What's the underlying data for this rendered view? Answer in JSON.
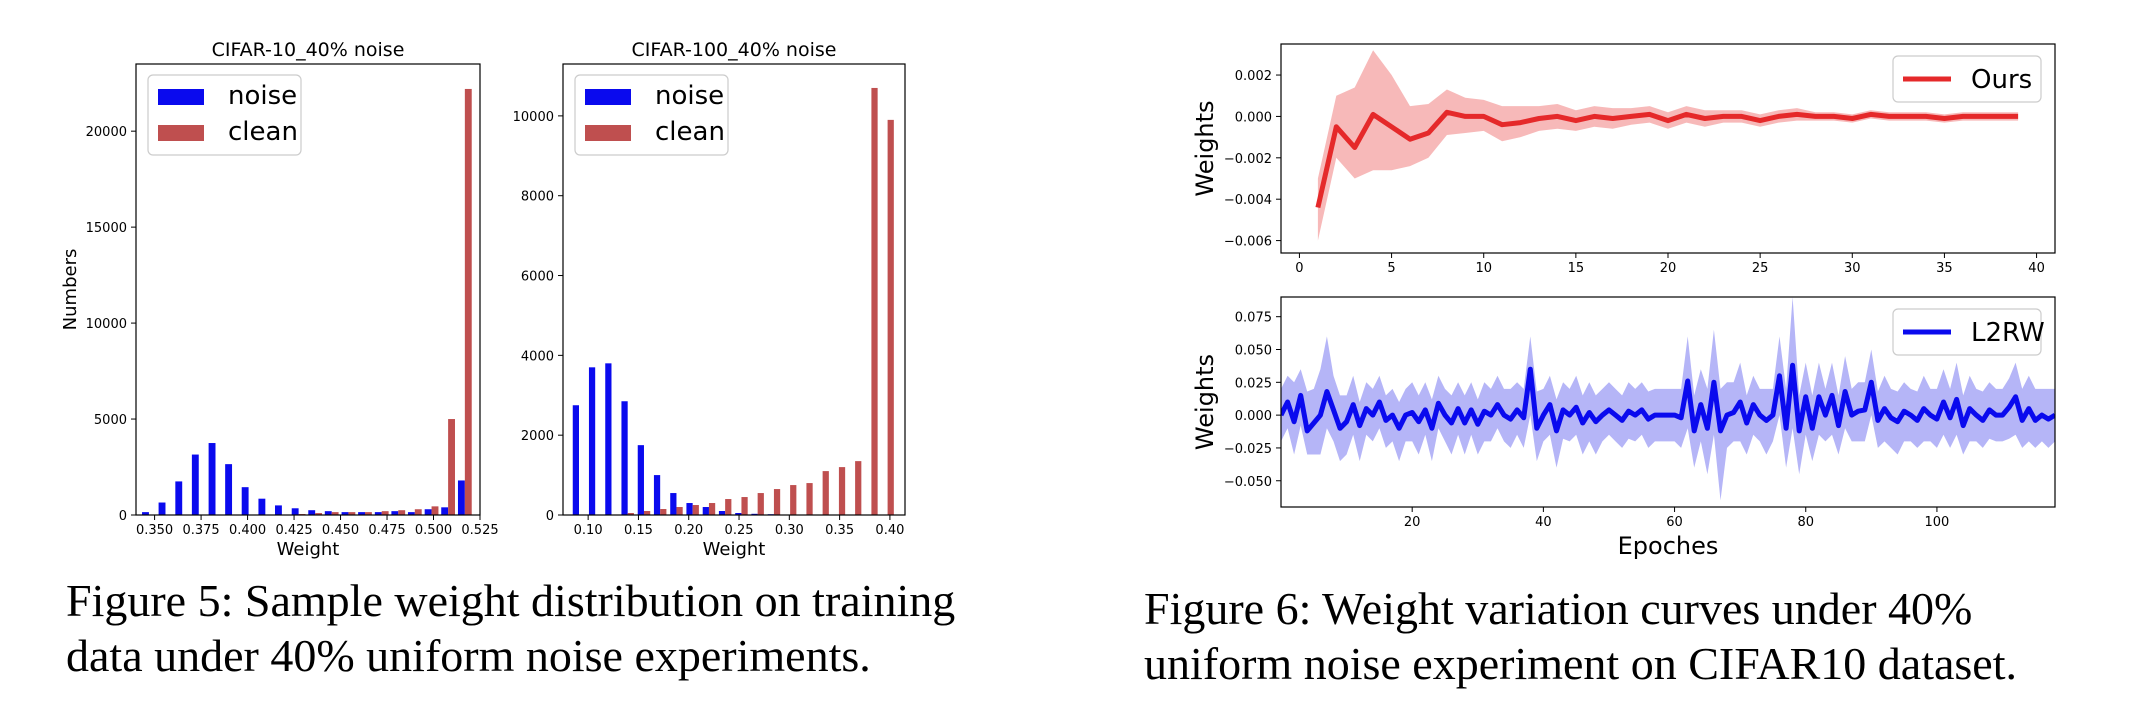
{
  "figure5": {
    "caption": "Figure 5: Sample weight distribution on training data under 40% uniform noise experiments.",
    "caption_lines": [
      "Figure 5: Sample weight distribution on training",
      "data under 40% uniform noise experiments."
    ]
  },
  "figure6": {
    "caption": "Figure 6: Weight variation curves under 40% uniform noise experiment on CIFAR10 dataset.",
    "caption_lines": [
      "Figure 6: Weight variation curves under 40%",
      "uniform noise experiment on CIFAR10 dataset."
    ]
  },
  "colors": {
    "noise": "#0a0aee",
    "clean": "#bf4f4f",
    "ours": "#e5292a",
    "ours_band": "#f7b9b9",
    "l2rw": "#0a0aee",
    "l2rw_band": "#b5b5f7"
  },
  "chart_data": [
    {
      "type": "bar",
      "title": "CIFAR-10_40% noise",
      "xlabel": "Weight",
      "ylabel": "Numbers",
      "xlim": [
        0.34,
        0.525
      ],
      "ylim": [
        0,
        23500
      ],
      "xticks": [
        0.35,
        0.375,
        0.4,
        0.425,
        0.45,
        0.475,
        0.5,
        0.525
      ],
      "xtick_labels": [
        "0.350",
        "0.375",
        "0.400",
        "0.425",
        "0.450",
        "0.475",
        "0.500",
        "0.525"
      ],
      "yticks": [
        0,
        5000,
        10000,
        15000,
        20000
      ],
      "ytick_labels": [
        "0",
        "5000",
        "10000",
        "15000",
        "20000"
      ],
      "legend": "top-left",
      "bin_width": 0.00894,
      "bar_width": 0.0037,
      "x": [
        0.3451,
        0.354,
        0.363,
        0.3719,
        0.3809,
        0.3898,
        0.3987,
        0.4077,
        0.4166,
        0.4256,
        0.4345,
        0.4434,
        0.4524,
        0.4613,
        0.4703,
        0.4792,
        0.4881,
        0.4971,
        0.506,
        0.515
      ],
      "series": [
        {
          "name": "noise",
          "values": [
            150,
            650,
            1750,
            3150,
            3750,
            2650,
            1450,
            850,
            500,
            350,
            250,
            200,
            150,
            150,
            150,
            200,
            150,
            300,
            400,
            1800
          ]
        },
        {
          "name": "clean",
          "values": [
            0,
            0,
            0,
            0,
            0,
            0,
            0,
            0,
            0,
            50,
            100,
            150,
            150,
            150,
            200,
            250,
            300,
            450,
            5000,
            22200
          ]
        }
      ]
    },
    {
      "type": "bar",
      "title": "CIFAR-100_40% noise",
      "xlabel": "Weight",
      "ylabel": "",
      "xlim": [
        0.075,
        0.415
      ],
      "ylim": [
        0,
        11300
      ],
      "xticks": [
        0.1,
        0.15,
        0.2,
        0.25,
        0.3,
        0.35,
        0.4
      ],
      "xtick_labels": [
        "0.10",
        "0.15",
        "0.20",
        "0.25",
        "0.30",
        "0.35",
        "0.40"
      ],
      "yticks": [
        0,
        2000,
        4000,
        6000,
        8000,
        10000
      ],
      "ytick_labels": [
        "0",
        "2000",
        "4000",
        "6000",
        "8000",
        "10000"
      ],
      "legend": "top-left",
      "bin_width": 0.01615,
      "bar_width": 0.0062,
      "x": [
        0.0878,
        0.1039,
        0.1201,
        0.1362,
        0.1524,
        0.1685,
        0.1847,
        0.2008,
        0.217,
        0.2331,
        0.2493,
        0.2654,
        0.2816,
        0.2977,
        0.3139,
        0.33,
        0.3462,
        0.3623,
        0.3785,
        0.3946
      ],
      "series": [
        {
          "name": "noise",
          "values": [
            2750,
            3700,
            3800,
            2850,
            1750,
            1000,
            550,
            300,
            200,
            100,
            50,
            30,
            20,
            10,
            10,
            10,
            10,
            10,
            0,
            0
          ]
        },
        {
          "name": "clean",
          "values": [
            0,
            0,
            0,
            50,
            100,
            150,
            200,
            250,
            300,
            400,
            450,
            550,
            650,
            750,
            800,
            1100,
            1200,
            1350,
            10700,
            9900
          ]
        }
      ]
    },
    {
      "type": "line",
      "title": "",
      "xlabel": "",
      "ylabel": "Weights",
      "xlim": [
        -1,
        41
      ],
      "ylim": [
        -0.0066,
        0.0035
      ],
      "xticks": [
        0,
        5,
        10,
        15,
        20,
        25,
        30,
        35,
        40
      ],
      "xtick_labels": [
        "0",
        "5",
        "10",
        "15",
        "20",
        "25",
        "30",
        "35",
        "40"
      ],
      "yticks": [
        -0.006,
        -0.004,
        -0.002,
        0.0,
        0.002
      ],
      "ytick_labels": [
        "−0.006",
        "−0.004",
        "−0.002",
        "0.000",
        "0.002"
      ],
      "legend": "top-right",
      "x": [
        1,
        2,
        3,
        4,
        5,
        6,
        7,
        8,
        9,
        10,
        11,
        12,
        13,
        14,
        15,
        16,
        17,
        18,
        19,
        20,
        21,
        22,
        23,
        24,
        25,
        26,
        27,
        28,
        29,
        30,
        31,
        32,
        33,
        34,
        35,
        36,
        37,
        38,
        39
      ],
      "series": [
        {
          "name": "Ours",
          "values": [
            -0.0044,
            -0.0005,
            -0.0015,
            0.0001,
            -0.0005,
            -0.0011,
            -0.0008,
            0.0002,
            0.0,
            0.0,
            -0.0004,
            -0.0003,
            -0.0001,
            0.0,
            -0.0002,
            0.0,
            -0.0001,
            0.0,
            0.0001,
            -0.0002,
            0.0001,
            -0.0001,
            0.0,
            0.0,
            -0.0002,
            0.0,
            0.0001,
            0.0,
            0.0,
            -0.0001,
            0.0001,
            0.0,
            0.0,
            0.0,
            -0.0001,
            0.0,
            0.0,
            0.0,
            0.0
          ],
          "upper": [
            -0.003,
            0.001,
            0.0014,
            0.0032,
            0.002,
            0.0005,
            0.0006,
            0.0013,
            0.0009,
            0.0008,
            0.0005,
            0.0005,
            0.0005,
            0.0006,
            0.0003,
            0.0005,
            0.0004,
            0.0004,
            0.0005,
            0.0002,
            0.0005,
            0.0003,
            0.0003,
            0.0003,
            0.0001,
            0.0003,
            0.0004,
            0.0002,
            0.0002,
            0.0001,
            0.0003,
            0.0002,
            0.0002,
            0.0002,
            0.0001,
            0.0002,
            0.0002,
            0.0002,
            0.0002
          ],
          "lower": [
            -0.006,
            -0.002,
            -0.003,
            -0.0026,
            -0.0026,
            -0.0024,
            -0.002,
            -0.0009,
            -0.0008,
            -0.0007,
            -0.0012,
            -0.001,
            -0.0007,
            -0.0006,
            -0.0007,
            -0.0005,
            -0.0006,
            -0.0004,
            -0.0003,
            -0.0006,
            -0.0003,
            -0.0005,
            -0.0003,
            -0.0003,
            -0.0005,
            -0.0003,
            -0.0002,
            -0.0002,
            -0.0002,
            -0.0003,
            -0.0001,
            -0.0002,
            -0.0002,
            -0.0002,
            -0.0003,
            -0.0002,
            -0.0002,
            -0.0002,
            -0.0002
          ]
        }
      ]
    },
    {
      "type": "line",
      "title": "",
      "xlabel": "Epoches",
      "ylabel": "Weights",
      "xlim": [
        0,
        118
      ],
      "ylim": [
        -0.07,
        0.09
      ],
      "xticks": [
        20,
        40,
        60,
        80,
        100
      ],
      "xtick_labels": [
        "20",
        "40",
        "60",
        "80",
        "100"
      ],
      "yticks": [
        -0.05,
        -0.025,
        0.0,
        0.025,
        0.05,
        0.075
      ],
      "ytick_labels": [
        "−0.050",
        "−0.025",
        "0.000",
        "0.025",
        "0.050",
        "0.075"
      ],
      "legend": "top-right",
      "x": [
        0,
        1,
        2,
        3,
        4,
        5,
        6,
        7,
        8,
        9,
        10,
        11,
        12,
        13,
        14,
        15,
        16,
        17,
        18,
        19,
        20,
        21,
        22,
        23,
        24,
        25,
        26,
        27,
        28,
        29,
        30,
        31,
        32,
        33,
        34,
        35,
        36,
        37,
        38,
        39,
        40,
        41,
        42,
        43,
        44,
        45,
        46,
        47,
        48,
        49,
        50,
        51,
        52,
        53,
        54,
        55,
        56,
        57,
        58,
        59,
        60,
        61,
        62,
        63,
        64,
        65,
        66,
        67,
        68,
        69,
        70,
        71,
        72,
        73,
        74,
        75,
        76,
        77,
        78,
        79,
        80,
        81,
        82,
        83,
        84,
        85,
        86,
        87,
        88,
        89,
        90,
        91,
        92,
        93,
        94,
        95,
        96,
        97,
        98,
        99,
        100,
        101,
        102,
        103,
        104,
        105,
        106,
        107,
        108,
        109,
        110,
        111,
        112,
        113,
        114,
        115,
        116,
        117,
        118
      ],
      "series": [
        {
          "name": "L2RW",
          "values": [
            0.0,
            0.01,
            -0.005,
            0.015,
            -0.012,
            -0.006,
            0.0,
            0.018,
            0.004,
            -0.01,
            -0.005,
            0.008,
            -0.008,
            0.005,
            0.0,
            0.01,
            -0.004,
            0.0,
            -0.01,
            0.0,
            0.002,
            -0.005,
            0.004,
            -0.01,
            0.009,
            0.0,
            -0.006,
            0.005,
            -0.006,
            0.004,
            -0.007,
            0.003,
            0.0,
            0.008,
            0.0,
            -0.003,
            0.004,
            -0.002,
            0.035,
            -0.01,
            0.0,
            0.008,
            -0.012,
            0.004,
            0.0,
            0.006,
            -0.006,
            0.002,
            -0.005,
            0.0,
            0.004,
            0.0,
            -0.004,
            0.003,
            0.0,
            0.004,
            -0.003,
            0.0,
            0.0,
            0.0,
            0.0,
            -0.002,
            0.026,
            -0.012,
            0.008,
            -0.01,
            0.025,
            -0.012,
            0.0,
            0.002,
            0.01,
            -0.006,
            0.008,
            0.0,
            -0.004,
            0.0,
            0.03,
            -0.01,
            0.038,
            -0.012,
            0.014,
            -0.01,
            0.014,
            0.0,
            0.015,
            -0.008,
            0.018,
            0.0,
            0.003,
            0.004,
            0.025,
            -0.004,
            0.005,
            -0.002,
            -0.005,
            0.003,
            0.0,
            -0.004,
            0.005,
            0.0,
            -0.003,
            0.01,
            -0.002,
            0.012,
            -0.008,
            0.005,
            0.0,
            -0.004,
            0.004,
            0.0,
            0.0,
            0.006,
            0.014,
            -0.004,
            0.005,
            -0.004,
            0.0,
            -0.003,
            0.0
          ],
          "upper": [
            0.02,
            0.03,
            0.025,
            0.035,
            0.018,
            0.02,
            0.035,
            0.06,
            0.03,
            0.015,
            0.015,
            0.03,
            0.01,
            0.025,
            0.02,
            0.03,
            0.015,
            0.02,
            0.01,
            0.02,
            0.025,
            0.015,
            0.025,
            0.012,
            0.03,
            0.02,
            0.015,
            0.025,
            0.015,
            0.025,
            0.012,
            0.025,
            0.02,
            0.03,
            0.02,
            0.02,
            0.025,
            0.02,
            0.06,
            0.018,
            0.02,
            0.03,
            0.012,
            0.025,
            0.02,
            0.03,
            0.015,
            0.025,
            0.015,
            0.02,
            0.025,
            0.02,
            0.015,
            0.025,
            0.02,
            0.025,
            0.018,
            0.02,
            0.02,
            0.02,
            0.02,
            0.02,
            0.06,
            0.015,
            0.035,
            0.02,
            0.065,
            0.02,
            0.025,
            0.025,
            0.04,
            0.015,
            0.03,
            0.02,
            0.02,
            0.02,
            0.06,
            0.02,
            0.09,
            0.015,
            0.04,
            0.015,
            0.04,
            0.02,
            0.04,
            0.015,
            0.045,
            0.02,
            0.025,
            0.025,
            0.05,
            0.018,
            0.03,
            0.02,
            0.018,
            0.025,
            0.02,
            0.018,
            0.03,
            0.02,
            0.02,
            0.035,
            0.02,
            0.04,
            0.015,
            0.03,
            0.02,
            0.018,
            0.025,
            0.02,
            0.02,
            0.028,
            0.04,
            0.02,
            0.03,
            0.02,
            0.02,
            0.02,
            0.02
          ],
          "lower": [
            -0.02,
            -0.01,
            -0.03,
            -0.008,
            -0.03,
            -0.03,
            -0.03,
            -0.01,
            -0.02,
            -0.035,
            -0.03,
            -0.015,
            -0.035,
            -0.015,
            -0.02,
            -0.01,
            -0.025,
            -0.02,
            -0.035,
            -0.02,
            -0.02,
            -0.03,
            -0.015,
            -0.035,
            -0.01,
            -0.02,
            -0.03,
            -0.015,
            -0.03,
            -0.015,
            -0.03,
            -0.02,
            -0.02,
            -0.01,
            -0.02,
            -0.025,
            -0.015,
            -0.025,
            0.0,
            -0.035,
            -0.02,
            -0.015,
            -0.04,
            -0.018,
            -0.02,
            -0.015,
            -0.03,
            -0.02,
            -0.03,
            -0.02,
            -0.015,
            -0.02,
            -0.025,
            -0.018,
            -0.02,
            -0.015,
            -0.025,
            -0.02,
            -0.02,
            -0.02,
            -0.02,
            -0.025,
            -0.01,
            -0.04,
            -0.02,
            -0.045,
            -0.015,
            -0.065,
            -0.025,
            -0.02,
            -0.02,
            -0.03,
            -0.015,
            -0.02,
            -0.03,
            -0.02,
            0.0,
            -0.04,
            -0.01,
            -0.045,
            -0.015,
            -0.035,
            -0.015,
            -0.02,
            -0.015,
            -0.03,
            -0.01,
            -0.02,
            -0.02,
            -0.02,
            0.0,
            -0.025,
            -0.02,
            -0.025,
            -0.03,
            -0.02,
            -0.02,
            -0.025,
            -0.02,
            -0.02,
            -0.025,
            -0.015,
            -0.025,
            -0.015,
            -0.03,
            -0.02,
            -0.02,
            -0.025,
            -0.018,
            -0.02,
            -0.02,
            -0.018,
            -0.015,
            -0.025,
            -0.02,
            -0.025,
            -0.02,
            -0.025,
            -0.02
          ]
        }
      ]
    }
  ]
}
